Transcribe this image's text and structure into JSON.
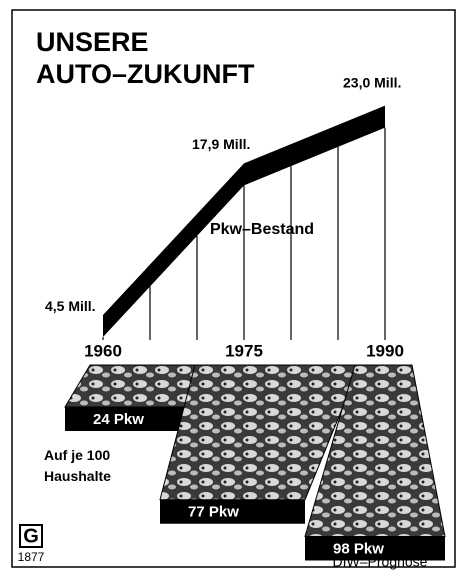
{
  "chart_data": [
    {
      "type": "line",
      "title": "UNSERE AUTO–ZUKUNFT",
      "x": [
        1960,
        1975,
        1990
      ],
      "series": [
        {
          "name": "Pkw–Bestand",
          "color": "#000000",
          "values": [
            4.5,
            17.9,
            23.0
          ],
          "value_labels": [
            "4,5 Mill.",
            "17,9 Mill.",
            "23,0 Mill."
          ]
        }
      ],
      "xlim": [
        1960,
        1990
      ],
      "xticks": [
        1960,
        1975,
        1990
      ],
      "ylim": [
        0,
        25
      ]
    },
    {
      "type": "bar",
      "note": "Auf je 100 Haushalte",
      "values": [
        24,
        77,
        98
      ],
      "value_labels": [
        "24 Pkw",
        "77 Pkw",
        "98 Pkw"
      ],
      "color": "#000000",
      "ylim": [
        0,
        100
      ],
      "source": "DIW–Prognose"
    }
  ],
  "logo": {
    "letter": "G",
    "year": "1877"
  }
}
